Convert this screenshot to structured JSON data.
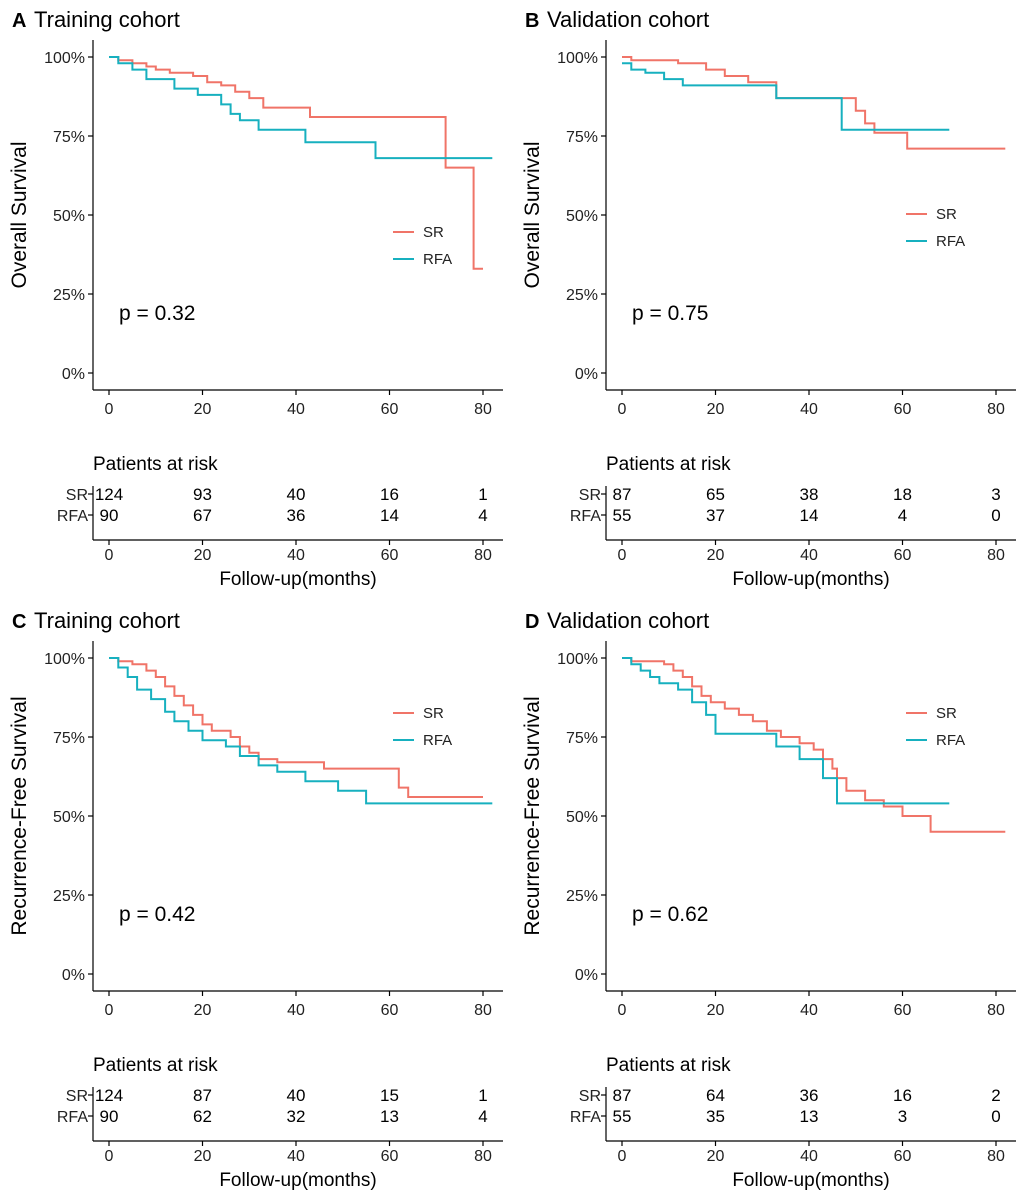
{
  "colors": {
    "SR": "#F07468",
    "RFA": "#17B0BF"
  },
  "chart_data": [
    {
      "type": "line",
      "panel": "A",
      "title": "Training cohort",
      "ylabel": "Overall Survival",
      "xlabel": "Follow-up(months)",
      "xticks": [
        "0",
        "20",
        "40",
        "60",
        "80"
      ],
      "yticks": [
        "0%",
        "25%",
        "50%",
        "75%",
        "100%"
      ],
      "xlim": [
        0,
        82
      ],
      "ylim": [
        0,
        100
      ],
      "pvalue": "p = 0.32",
      "legend": [
        "SR",
        "RFA"
      ],
      "series": [
        {
          "name": "SR",
          "x": [
            0,
            2,
            5,
            8,
            10,
            13,
            18,
            21,
            24,
            27,
            30,
            33,
            43,
            72,
            74,
            78,
            80
          ],
          "y": [
            100,
            99,
            98,
            97,
            96,
            95,
            94,
            92,
            91,
            89,
            87,
            84,
            81,
            65,
            65,
            33,
            33
          ]
        },
        {
          "name": "RFA",
          "x": [
            0,
            2,
            5,
            8,
            14,
            19,
            24,
            26,
            28,
            32,
            42,
            57,
            82
          ],
          "y": [
            100,
            98,
            96,
            93,
            90,
            88,
            85,
            82,
            80,
            77,
            73,
            68,
            68
          ]
        }
      ],
      "risk_table": {
        "header": "Patients at risk",
        "rows": [
          {
            "group": "SR",
            "values": [
              "124",
              "93",
              "40",
              "16",
              "1"
            ]
          },
          {
            "group": "RFA",
            "values": [
              "90",
              "67",
              "36",
              "14",
              "4"
            ]
          }
        ]
      }
    },
    {
      "type": "line",
      "panel": "B",
      "title": "Validation cohort",
      "ylabel": "Overall Survival",
      "xlabel": "Follow-up(months)",
      "xticks": [
        "0",
        "20",
        "40",
        "60",
        "80"
      ],
      "yticks": [
        "0%",
        "25%",
        "50%",
        "75%",
        "100%"
      ],
      "xlim": [
        0,
        82
      ],
      "ylim": [
        0,
        100
      ],
      "pvalue": "p = 0.75",
      "legend": [
        "SR",
        "RFA"
      ],
      "series": [
        {
          "name": "SR",
          "x": [
            0,
            2,
            12,
            18,
            22,
            27,
            33,
            47,
            50,
            52,
            54,
            61,
            82
          ],
          "y": [
            100,
            99,
            98,
            96,
            94,
            92,
            87,
            87,
            83,
            79,
            76,
            71,
            71
          ]
        },
        {
          "name": "RFA",
          "x": [
            0,
            2,
            5,
            9,
            13,
            33,
            47,
            70
          ],
          "y": [
            98,
            96,
            95,
            93,
            91,
            87,
            77,
            77
          ]
        }
      ],
      "risk_table": {
        "header": "Patients at risk",
        "rows": [
          {
            "group": "SR",
            "values": [
              "87",
              "65",
              "38",
              "18",
              "3"
            ]
          },
          {
            "group": "RFA",
            "values": [
              "55",
              "37",
              "14",
              "4",
              "0"
            ]
          }
        ]
      }
    },
    {
      "type": "line",
      "panel": "C",
      "title": "Training cohort",
      "ylabel": "Recurrence-Free Survival",
      "xlabel": "Follow-up(months)",
      "xticks": [
        "0",
        "20",
        "40",
        "60",
        "80"
      ],
      "yticks": [
        "0%",
        "25%",
        "50%",
        "75%",
        "100%"
      ],
      "xlim": [
        0,
        82
      ],
      "ylim": [
        0,
        100
      ],
      "pvalue": "p = 0.42",
      "legend": [
        "SR",
        "RFA"
      ],
      "series": [
        {
          "name": "SR",
          "x": [
            0,
            2,
            5,
            8,
            10,
            12,
            14,
            16,
            18,
            20,
            22,
            26,
            28,
            30,
            32,
            36,
            46,
            62,
            64,
            80
          ],
          "y": [
            100,
            99,
            98,
            96,
            94,
            91,
            88,
            85,
            82,
            79,
            77,
            75,
            72,
            70,
            68,
            67,
            65,
            59,
            56,
            56
          ]
        },
        {
          "name": "RFA",
          "x": [
            0,
            2,
            4,
            6,
            9,
            12,
            14,
            17,
            20,
            25,
            28,
            32,
            36,
            42,
            49,
            55,
            82
          ],
          "y": [
            100,
            97,
            94,
            90,
            87,
            83,
            80,
            77,
            74,
            72,
            69,
            66,
            64,
            61,
            58,
            54,
            54
          ]
        }
      ],
      "risk_table": {
        "header": "Patients at risk",
        "rows": [
          {
            "group": "SR",
            "values": [
              "124",
              "87",
              "40",
              "15",
              "1"
            ]
          },
          {
            "group": "RFA",
            "values": [
              "90",
              "62",
              "32",
              "13",
              "4"
            ]
          }
        ]
      }
    },
    {
      "type": "line",
      "panel": "D",
      "title": "Validation cohort",
      "ylabel": "Recurrence-Free Survival",
      "xlabel": "Follow-up(months)",
      "xticks": [
        "0",
        "20",
        "40",
        "60",
        "80"
      ],
      "yticks": [
        "0%",
        "25%",
        "50%",
        "75%",
        "100%"
      ],
      "xlim": [
        0,
        82
      ],
      "ylim": [
        0,
        100
      ],
      "pvalue": "p = 0.62",
      "legend": [
        "SR",
        "RFA"
      ],
      "series": [
        {
          "name": "SR",
          "x": [
            0,
            2,
            9,
            11,
            13,
            15,
            17,
            19,
            22,
            25,
            28,
            31,
            34,
            38,
            41,
            43,
            45,
            46,
            48,
            52,
            56,
            60,
            66,
            82
          ],
          "y": [
            100,
            99,
            98,
            96,
            94,
            91,
            88,
            86,
            84,
            82,
            80,
            77,
            75,
            73,
            71,
            68,
            65,
            62,
            58,
            55,
            53,
            50,
            45,
            45
          ]
        },
        {
          "name": "RFA",
          "x": [
            0,
            2,
            4,
            6,
            8,
            12,
            15,
            18,
            20,
            33,
            38,
            43,
            46,
            70
          ],
          "y": [
            100,
            98,
            96,
            94,
            92,
            90,
            86,
            82,
            76,
            72,
            68,
            62,
            54,
            54
          ]
        }
      ],
      "risk_table": {
        "header": "Patients at risk",
        "rows": [
          {
            "group": "SR",
            "values": [
              "87",
              "64",
              "36",
              "16",
              "2"
            ]
          },
          {
            "group": "RFA",
            "values": [
              "55",
              "35",
              "13",
              "3",
              "0"
            ]
          }
        ]
      }
    }
  ]
}
